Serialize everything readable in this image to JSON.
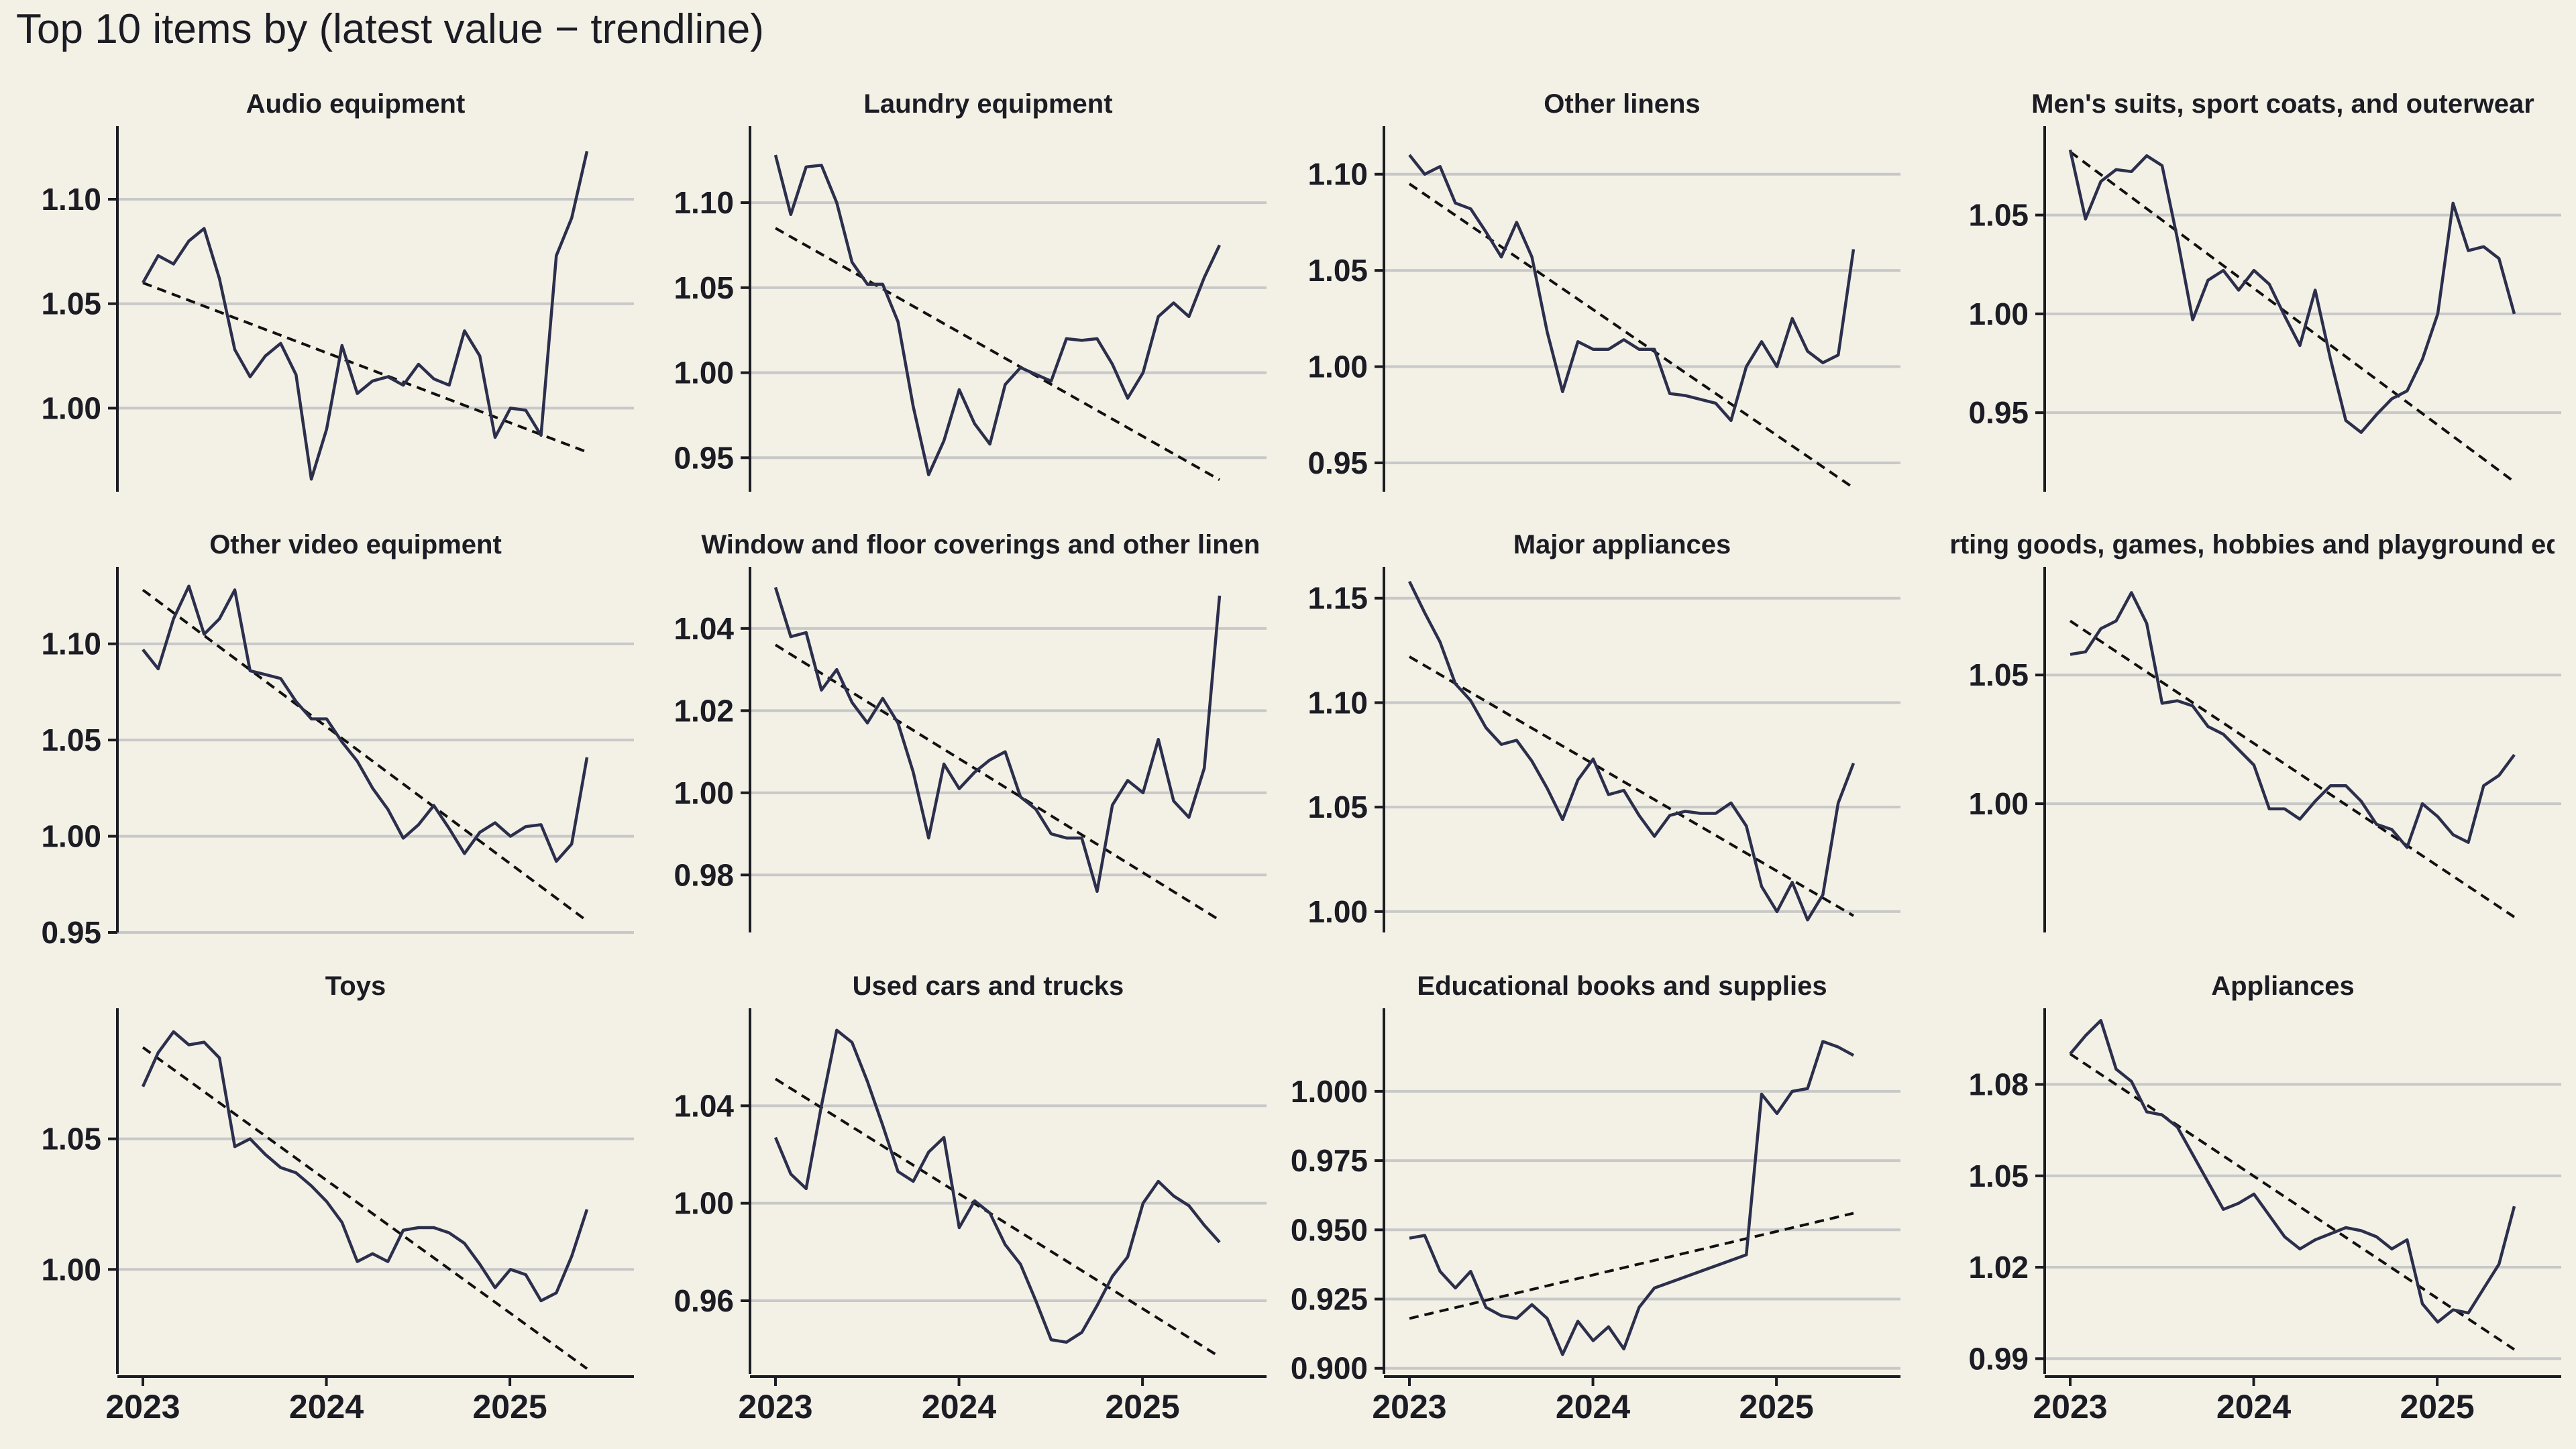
{
  "page": {
    "title": "Top 10 items by (latest value − trendline)"
  },
  "colors": {
    "background": "#f3f1e6",
    "line": "#2c2f4c",
    "trend": "#111111",
    "grid": "#c8c8c8",
    "axis": "#1c1c24"
  },
  "chart_data": [
    {
      "type": "line",
      "title": "Audio equipment",
      "x_ticks": [
        "2023",
        "2024",
        "2025"
      ],
      "x_range": [
        2023.0,
        2025.42
      ],
      "ylim": [
        0.96,
        1.135
      ],
      "y_ticks": [
        {
          "value": 1.0,
          "label": "1.00"
        },
        {
          "value": 1.05,
          "label": "1.05"
        },
        {
          "value": 1.1,
          "label": "1.10"
        }
      ],
      "values": [
        1.06,
        1.073,
        1.069,
        1.08,
        1.086,
        1.062,
        1.028,
        1.015,
        1.025,
        1.031,
        1.016,
        0.966,
        0.99,
        1.03,
        1.007,
        1.013,
        1.015,
        1.011,
        1.021,
        1.014,
        1.011,
        1.037,
        1.025,
        0.986,
        1.0,
        0.999,
        0.987,
        1.073,
        1.091,
        1.123
      ],
      "trend": [
        1.06,
        0.979
      ],
      "grid": true
    },
    {
      "type": "line",
      "title": "Laundry equipment",
      "x_ticks": [
        "2023",
        "2024",
        "2025"
      ],
      "x_range": [
        2023.0,
        2025.42
      ],
      "ylim": [
        0.93,
        1.145
      ],
      "y_ticks": [
        {
          "value": 0.95,
          "label": "0.95"
        },
        {
          "value": 1.0,
          "label": "1.00"
        },
        {
          "value": 1.05,
          "label": "1.05"
        },
        {
          "value": 1.1,
          "label": "1.10"
        }
      ],
      "values": [
        1.128,
        1.093,
        1.121,
        1.122,
        1.1,
        1.065,
        1.052,
        1.052,
        1.03,
        0.98,
        0.94,
        0.96,
        0.99,
        0.97,
        0.958,
        0.993,
        1.003,
        0.999,
        0.995,
        1.02,
        1.019,
        1.02,
        1.005,
        0.985,
        1.0,
        1.033,
        1.041,
        1.033,
        1.056,
        1.075
      ],
      "trend": [
        1.085,
        0.937
      ],
      "grid": true
    },
    {
      "type": "line",
      "title": "Other linens",
      "x_ticks": [
        "2023",
        "2024",
        "2025"
      ],
      "x_range": [
        2023.0,
        2025.42
      ],
      "ylim": [
        0.935,
        1.125
      ],
      "y_ticks": [
        {
          "value": 0.95,
          "label": "0.95"
        },
        {
          "value": 1.0,
          "label": "1.00"
        },
        {
          "value": 1.05,
          "label": "1.05"
        },
        {
          "value": 1.1,
          "label": "1.10"
        }
      ],
      "values": [
        1.11,
        1.1,
        1.104,
        1.085,
        1.082,
        1.07,
        1.057,
        1.075,
        1.057,
        1.018,
        0.987,
        1.013,
        1.009,
        1.009,
        1.014,
        1.009,
        1.009,
        0.986,
        0.985,
        0.983,
        0.981,
        0.972,
        1.0,
        1.013,
        1.0,
        1.025,
        1.008,
        1.002,
        1.006,
        1.061
      ],
      "trend": [
        1.095,
        0.937
      ],
      "grid": true
    },
    {
      "type": "line",
      "title": "Men's suits, sport coats, and outerwear",
      "x_ticks": [
        "2023",
        "2024",
        "2025"
      ],
      "x_range": [
        2023.0,
        2025.42
      ],
      "ylim": [
        0.91,
        1.095
      ],
      "y_ticks": [
        {
          "value": 0.95,
          "label": "0.95"
        },
        {
          "value": 1.0,
          "label": "1.00"
        },
        {
          "value": 1.05,
          "label": "1.05"
        }
      ],
      "values": [
        1.083,
        1.048,
        1.067,
        1.073,
        1.072,
        1.08,
        1.075,
        1.038,
        0.997,
        1.017,
        1.022,
        1.012,
        1.022,
        1.015,
        0.999,
        0.984,
        1.012,
        0.977,
        0.946,
        0.94,
        0.949,
        0.957,
        0.961,
        0.977,
        1.0,
        1.056,
        1.032,
        1.034,
        1.028,
        1.0
      ],
      "trend": [
        1.082,
        0.915
      ],
      "grid": true
    },
    {
      "type": "line",
      "title": "Other video equipment",
      "x_ticks": [
        "2023",
        "2024",
        "2025"
      ],
      "x_range": [
        2023.0,
        2025.42
      ],
      "ylim": [
        0.95,
        1.14
      ],
      "y_ticks": [
        {
          "value": 0.95,
          "label": "0.95"
        },
        {
          "value": 1.0,
          "label": "1.00"
        },
        {
          "value": 1.05,
          "label": "1.05"
        },
        {
          "value": 1.1,
          "label": "1.10"
        }
      ],
      "values": [
        1.097,
        1.087,
        1.113,
        1.13,
        1.105,
        1.113,
        1.128,
        1.086,
        1.084,
        1.082,
        1.07,
        1.061,
        1.061,
        1.049,
        1.039,
        1.025,
        1.014,
        0.999,
        1.006,
        1.016,
        1.004,
        0.991,
        1.002,
        1.007,
        1.0,
        1.005,
        1.006,
        0.987,
        0.996,
        1.041
      ],
      "trend": [
        1.128,
        0.956
      ],
      "grid": true
    },
    {
      "type": "line",
      "title": "Window and floor coverings and other linens",
      "x_ticks": [
        "2023",
        "2024",
        "2025"
      ],
      "x_range": [
        2023.0,
        2025.42
      ],
      "ylim": [
        0.966,
        1.055
      ],
      "y_ticks": [
        {
          "value": 0.98,
          "label": "0.98"
        },
        {
          "value": 1.0,
          "label": "1.00"
        },
        {
          "value": 1.02,
          "label": "1.02"
        },
        {
          "value": 1.04,
          "label": "1.04"
        }
      ],
      "values": [
        1.05,
        1.038,
        1.039,
        1.025,
        1.03,
        1.022,
        1.017,
        1.023,
        1.017,
        1.005,
        0.989,
        1.007,
        1.001,
        1.005,
        1.008,
        1.01,
        0.999,
        0.996,
        0.99,
        0.989,
        0.989,
        0.976,
        0.997,
        1.003,
        1.0,
        1.013,
        0.998,
        0.994,
        1.006,
        1.048
      ],
      "trend": [
        1.036,
        0.969
      ],
      "grid": true
    },
    {
      "type": "line",
      "title": "Major appliances",
      "x_ticks": [
        "2023",
        "2024",
        "2025"
      ],
      "x_range": [
        2023.0,
        2025.42
      ],
      "ylim": [
        0.99,
        1.165
      ],
      "y_ticks": [
        {
          "value": 1.0,
          "label": "1.00"
        },
        {
          "value": 1.05,
          "label": "1.05"
        },
        {
          "value": 1.1,
          "label": "1.10"
        },
        {
          "value": 1.15,
          "label": "1.15"
        }
      ],
      "values": [
        1.158,
        1.143,
        1.129,
        1.109,
        1.101,
        1.088,
        1.08,
        1.082,
        1.072,
        1.059,
        1.044,
        1.063,
        1.073,
        1.056,
        1.058,
        1.046,
        1.036,
        1.046,
        1.048,
        1.047,
        1.047,
        1.052,
        1.041,
        1.012,
        1.0,
        1.014,
        0.996,
        1.008,
        1.052,
        1.071
      ],
      "trend": [
        1.122,
        0.998
      ],
      "grid": true
    },
    {
      "type": "line",
      "title": "Sporting goods, games, hobbies and playground equipment",
      "x_ticks": [
        "2023",
        "2024",
        "2025"
      ],
      "x_range": [
        2023.0,
        2025.42
      ],
      "ylim": [
        0.95,
        1.092
      ],
      "y_ticks": [
        {
          "value": 1.0,
          "label": "1.00"
        },
        {
          "value": 1.05,
          "label": "1.05"
        }
      ],
      "values": [
        1.058,
        1.059,
        1.068,
        1.071,
        1.082,
        1.07,
        1.039,
        1.04,
        1.038,
        1.03,
        1.027,
        1.021,
        1.015,
        0.998,
        0.998,
        0.994,
        1.001,
        1.007,
        1.007,
        1.001,
        0.992,
        0.99,
        0.983,
        1.0,
        0.995,
        0.988,
        0.985,
        1.007,
        1.011,
        1.019
      ],
      "trend": [
        1.071,
        0.956
      ],
      "grid": true
    },
    {
      "type": "line",
      "title": "Toys",
      "x_ticks": [
        "2023",
        "2024",
        "2025"
      ],
      "x_range": [
        2023.0,
        2025.42
      ],
      "ylim": [
        0.96,
        1.1
      ],
      "y_ticks": [
        {
          "value": 1.0,
          "label": "1.00"
        },
        {
          "value": 1.05,
          "label": "1.05"
        }
      ],
      "values": [
        1.07,
        1.083,
        1.091,
        1.086,
        1.087,
        1.081,
        1.047,
        1.05,
        1.044,
        1.039,
        1.037,
        1.032,
        1.026,
        1.018,
        1.003,
        1.006,
        1.003,
        1.015,
        1.016,
        1.016,
        1.014,
        1.01,
        1.002,
        0.993,
        1.0,
        0.998,
        0.988,
        0.991,
        1.005,
        1.023
      ],
      "trend": [
        1.085,
        0.962
      ],
      "grid": true
    },
    {
      "type": "line",
      "title": "Used cars and trucks",
      "x_ticks": [
        "2023",
        "2024",
        "2025"
      ],
      "x_range": [
        2023.0,
        2025.42
      ],
      "ylim": [
        0.93,
        1.08
      ],
      "y_ticks": [
        {
          "value": 0.96,
          "label": "0.96"
        },
        {
          "value": 1.0,
          "label": "1.00"
        },
        {
          "value": 1.04,
          "label": "1.04"
        }
      ],
      "values": [
        1.027,
        1.012,
        1.006,
        1.04,
        1.071,
        1.066,
        1.05,
        1.032,
        1.013,
        1.009,
        1.021,
        1.027,
        0.99,
        1.001,
        0.996,
        0.983,
        0.975,
        0.96,
        0.944,
        0.943,
        0.947,
        0.958,
        0.97,
        0.978,
        1.0,
        1.009,
        1.003,
        0.999,
        0.991,
        0.984
      ],
      "trend": [
        1.051,
        0.937
      ],
      "grid": true
    },
    {
      "type": "line",
      "title": "Educational books and supplies",
      "x_ticks": [
        "2023",
        "2024",
        "2025"
      ],
      "x_range": [
        2023.0,
        2025.42
      ],
      "ylim": [
        0.898,
        1.03
      ],
      "y_ticks": [
        {
          "value": 0.9,
          "label": "0.900"
        },
        {
          "value": 0.925,
          "label": "0.925"
        },
        {
          "value": 0.95,
          "label": "0.950"
        },
        {
          "value": 0.975,
          "label": "0.975"
        },
        {
          "value": 1.0,
          "label": "1.000"
        }
      ],
      "values": [
        0.947,
        0.948,
        0.935,
        0.929,
        0.935,
        0.922,
        0.919,
        0.918,
        0.923,
        0.918,
        0.905,
        0.917,
        0.91,
        0.915,
        0.907,
        0.922,
        0.929,
        0.931,
        0.933,
        0.935,
        0.937,
        0.939,
        0.941,
        0.999,
        0.992,
        1.0,
        1.001,
        1.018,
        1.016,
        1.013
      ],
      "trend": [
        0.918,
        0.956
      ],
      "grid": true
    },
    {
      "type": "line",
      "title": "Appliances",
      "x_ticks": [
        "2023",
        "2024",
        "2025"
      ],
      "x_range": [
        2023.0,
        2025.42
      ],
      "ylim": [
        0.985,
        1.105
      ],
      "y_ticks": [
        {
          "value": 0.99,
          "label": "0.99"
        },
        {
          "value": 1.02,
          "label": "1.02"
        },
        {
          "value": 1.05,
          "label": "1.05"
        },
        {
          "value": 1.08,
          "label": "1.08"
        }
      ],
      "values": [
        1.09,
        1.096,
        1.101,
        1.085,
        1.081,
        1.071,
        1.07,
        1.066,
        1.057,
        1.048,
        1.039,
        1.041,
        1.044,
        1.037,
        1.03,
        1.026,
        1.029,
        1.031,
        1.033,
        1.032,
        1.03,
        1.026,
        1.029,
        1.008,
        1.002,
        1.006,
        1.005,
        1.013,
        1.021,
        1.04
      ],
      "trend": [
        1.09,
        0.993
      ],
      "grid": true
    }
  ]
}
